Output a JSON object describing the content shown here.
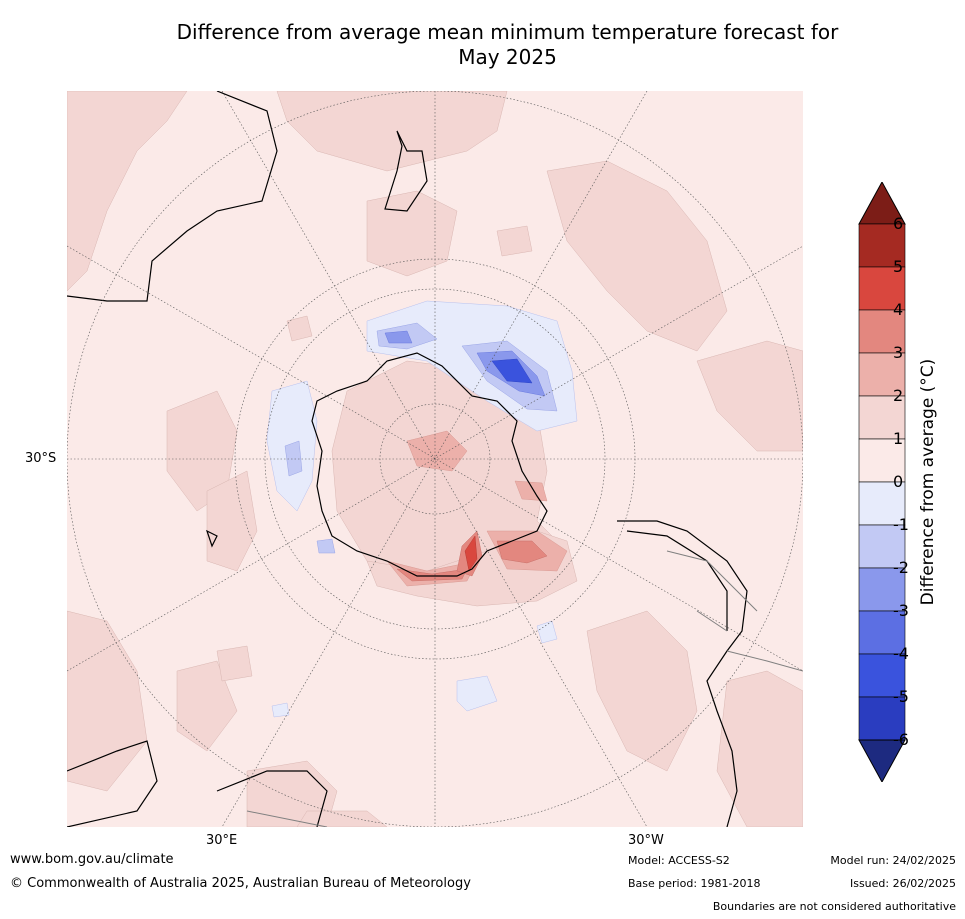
{
  "title_line1": "Difference from average mean minimum temperature forecast for",
  "title_line2": "May 2025",
  "map": {
    "labels": {
      "lat_30s": "30°S",
      "lon_30e": "30°E",
      "lon_30w": "30°W"
    },
    "colors": {
      "ocean_base": "#fbeae8",
      "anom_pos_1": "#f3d6d3",
      "anom_pos_2": "#ecb0aa",
      "anom_pos_3": "#e3877f",
      "anom_pos_4": "#d9473e",
      "anom_neg_1": "#e7ebfb",
      "anom_neg_2": "#c2c9f4",
      "anom_neg_3": "#8a98ec",
      "anom_neg_4": "#3a53dd",
      "anom_neg_5": "#2036b8",
      "coast": "#000000",
      "border": "#808080",
      "grid": "#555555"
    }
  },
  "colorbar": {
    "title": "Difference from average (°C)",
    "ticks": [
      "6",
      "5",
      "4",
      "3",
      "2",
      "1",
      "0",
      "-1",
      "-2",
      "-3",
      "-4",
      "-5",
      "-6"
    ],
    "colors": [
      "#a52a22",
      "#d9473e",
      "#e3877f",
      "#ecb0aa",
      "#f3d6d3",
      "#fbeae8",
      "#e7ebfb",
      "#c2c9f4",
      "#8a98ec",
      "#5c6fe3",
      "#3a53dd",
      "#2a3dc0"
    ],
    "extend_high": "#7c1d17",
    "extend_low": "#1d2a80"
  },
  "footer": {
    "url": "www.bom.gov.au/climate",
    "copyright": "© Commonwealth of Australia 2025, Australian Bureau of Meteorology",
    "model": "Model: ACCESS-S2",
    "base_period": "Base period: 1981-2018",
    "model_run": "Model run: 24/02/2025",
    "issued": "Issued: 26/02/2025",
    "disclaimer": "Boundaries are not considered authoritative"
  }
}
